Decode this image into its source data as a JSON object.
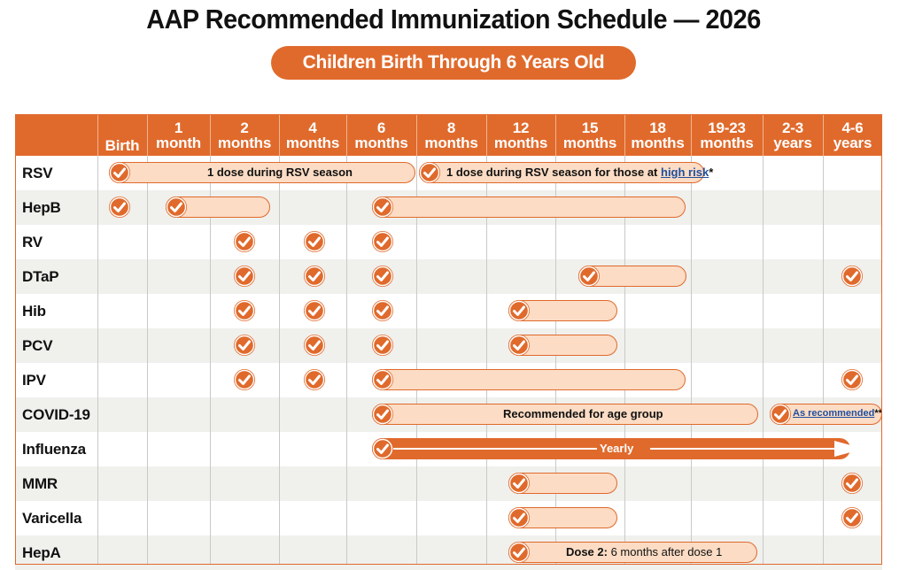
{
  "title": "AAP Recommended Immunization Schedule — 2026",
  "subtitle": "Children Birth Through 6 Years Old",
  "columns": [
    {
      "line1": "",
      "line2": "Birth"
    },
    {
      "line1": "1",
      "line2": "month"
    },
    {
      "line1": "2",
      "line2": "months"
    },
    {
      "line1": "4",
      "line2": "months"
    },
    {
      "line1": "6",
      "line2": "months"
    },
    {
      "line1": "8",
      "line2": "months"
    },
    {
      "line1": "12",
      "line2": "months"
    },
    {
      "line1": "15",
      "line2": "months"
    },
    {
      "line1": "18",
      "line2": "months"
    },
    {
      "line1": "19-23",
      "line2": "months"
    },
    {
      "line1": "2-3",
      "line2": "years"
    },
    {
      "line1": "4-6",
      "line2": "years"
    }
  ],
  "vaccines": [
    "RSV",
    "HepB",
    "RV",
    "DTaP",
    "Hib",
    "PCV",
    "IPV",
    "COVID-19",
    "Influenza",
    "MMR",
    "Varicella",
    "HepA"
  ],
  "labels": {
    "rsv_season": "1 dose during RSV season",
    "rsv_highrisk_prefix": "1 dose during RSV season for those at ",
    "rsv_highrisk_link": "high risk",
    "rsv_highrisk_suffix": "*",
    "covid_group": "Recommended for age group",
    "covid_link": "As recommended",
    "covid_suffix": "**",
    "flu_yearly": "Yearly",
    "hepa_bold": "Dose 2:",
    "hepa_rest": " 6 months after dose 1"
  },
  "colors": {
    "accent": "#e06a2c",
    "bar_fill": "#fcdcc4",
    "alt_row": "#f0f0ed",
    "link": "#1f4f9e"
  },
  "icons": {
    "dose": "check-circle-icon",
    "yearly": "arrow-right-icon"
  }
}
